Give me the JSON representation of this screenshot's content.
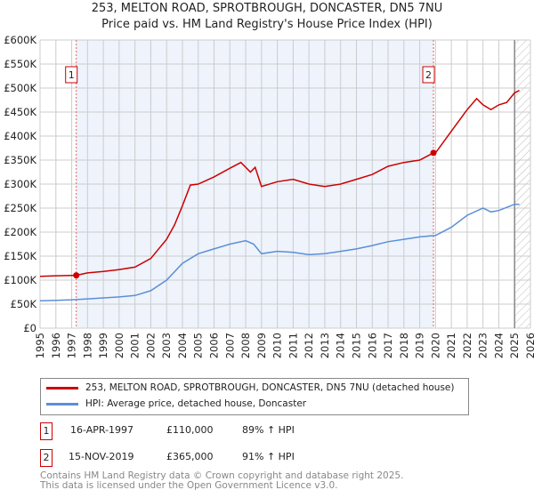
{
  "chart_data": {
    "type": "line",
    "title": "253, MELTON ROAD, SPROTBROUGH, DONCASTER, DN5 7NU",
    "subtitle": "Price paid vs. HM Land Registry's House Price Index (HPI)",
    "xlim": [
      1995,
      2026
    ],
    "ylim": [
      0,
      600000
    ],
    "x_ticks": [
      "1995",
      "1996",
      "1997",
      "1998",
      "1999",
      "2000",
      "2001",
      "2002",
      "2003",
      "2004",
      "2005",
      "2006",
      "2007",
      "2008",
      "2009",
      "2010",
      "2011",
      "2012",
      "2013",
      "2014",
      "2015",
      "2016",
      "2017",
      "2018",
      "2019",
      "2020",
      "2021",
      "2022",
      "2023",
      "2024",
      "2025",
      "2026"
    ],
    "y_ticks": [
      {
        "v": 0,
        "label": "£0"
      },
      {
        "v": 50000,
        "label": "£50K"
      },
      {
        "v": 100000,
        "label": "£100K"
      },
      {
        "v": 150000,
        "label": "£150K"
      },
      {
        "v": 200000,
        "label": "£200K"
      },
      {
        "v": 250000,
        "label": "£250K"
      },
      {
        "v": 300000,
        "label": "£300K"
      },
      {
        "v": 350000,
        "label": "£350K"
      },
      {
        "v": 400000,
        "label": "£400K"
      },
      {
        "v": 450000,
        "label": "£450K"
      },
      {
        "v": 500000,
        "label": "£500K"
      },
      {
        "v": 550000,
        "label": "£550K"
      },
      {
        "v": 600000,
        "label": "£600K"
      }
    ],
    "grid": true,
    "shaded_range": [
      1997.29,
      2019.87
    ],
    "hatched_from": 2025.0,
    "series": [
      {
        "name": "253, MELTON ROAD, SPROTBROUGH, DONCASTER, DN5 7NU (detached house)",
        "color": "#cc0000",
        "x": [
          1995,
          1996,
          1997.29,
          1998,
          1999,
          2000,
          2001,
          2002,
          2003,
          2003.5,
          2004,
          2004.5,
          2005,
          2006,
          2007,
          2007.7,
          2008.3,
          2008.6,
          2009,
          2010,
          2011,
          2012,
          2013,
          2014,
          2015,
          2016,
          2017,
          2018,
          2019,
          2019.87,
          2020,
          2021,
          2022,
          2022.6,
          2023,
          2023.5,
          2024,
          2024.5,
          2025,
          2025.3
        ],
        "y": [
          108000,
          109000,
          110000,
          115000,
          118000,
          122000,
          127000,
          145000,
          185000,
          215000,
          255000,
          298000,
          300000,
          315000,
          333000,
          345000,
          325000,
          335000,
          295000,
          305000,
          310000,
          300000,
          295000,
          300000,
          310000,
          320000,
          337000,
          345000,
          350000,
          365000,
          365000,
          410000,
          455000,
          478000,
          465000,
          455000,
          465000,
          470000,
          490000,
          495000
        ]
      },
      {
        "name": "HPI: Average price, detached house, Doncaster",
        "color": "#5b8fd6",
        "x": [
          1995,
          1996,
          1997,
          1998,
          1999,
          2000,
          2001,
          2002,
          2003,
          2004,
          2005,
          2006,
          2007,
          2008,
          2008.5,
          2009,
          2010,
          2011,
          2012,
          2013,
          2014,
          2015,
          2016,
          2017,
          2018,
          2019,
          2020,
          2021,
          2022,
          2023,
          2023.5,
          2024,
          2025,
          2025.3
        ],
        "y": [
          57000,
          58000,
          59000,
          61000,
          63000,
          65000,
          68000,
          78000,
          100000,
          135000,
          155000,
          165000,
          175000,
          182000,
          175000,
          155000,
          160000,
          158000,
          153000,
          155000,
          160000,
          165000,
          172000,
          180000,
          185000,
          190000,
          193000,
          210000,
          235000,
          250000,
          242000,
          245000,
          258000,
          258000
        ]
      }
    ],
    "markers": [
      {
        "label": "1",
        "x": 1997.29,
        "y": 110000
      },
      {
        "label": "2",
        "x": 2019.87,
        "y": 365000
      }
    ]
  },
  "legend": {
    "property": "253, MELTON ROAD, SPROTBROUGH, DONCASTER, DN5 7NU (detached house)",
    "hpi": "HPI: Average price, detached house, Doncaster"
  },
  "transactions": [
    {
      "num": "1",
      "date": "16-APR-1997",
      "price": "£110,000",
      "hpi": "89% ↑ HPI"
    },
    {
      "num": "2",
      "date": "15-NOV-2019",
      "price": "£365,000",
      "hpi": "91% ↑ HPI"
    }
  ],
  "footer": {
    "line1": "Contains HM Land Registry data © Crown copyright and database right 2025.",
    "line2": "This data is licensed under the Open Government Licence v3.0."
  }
}
